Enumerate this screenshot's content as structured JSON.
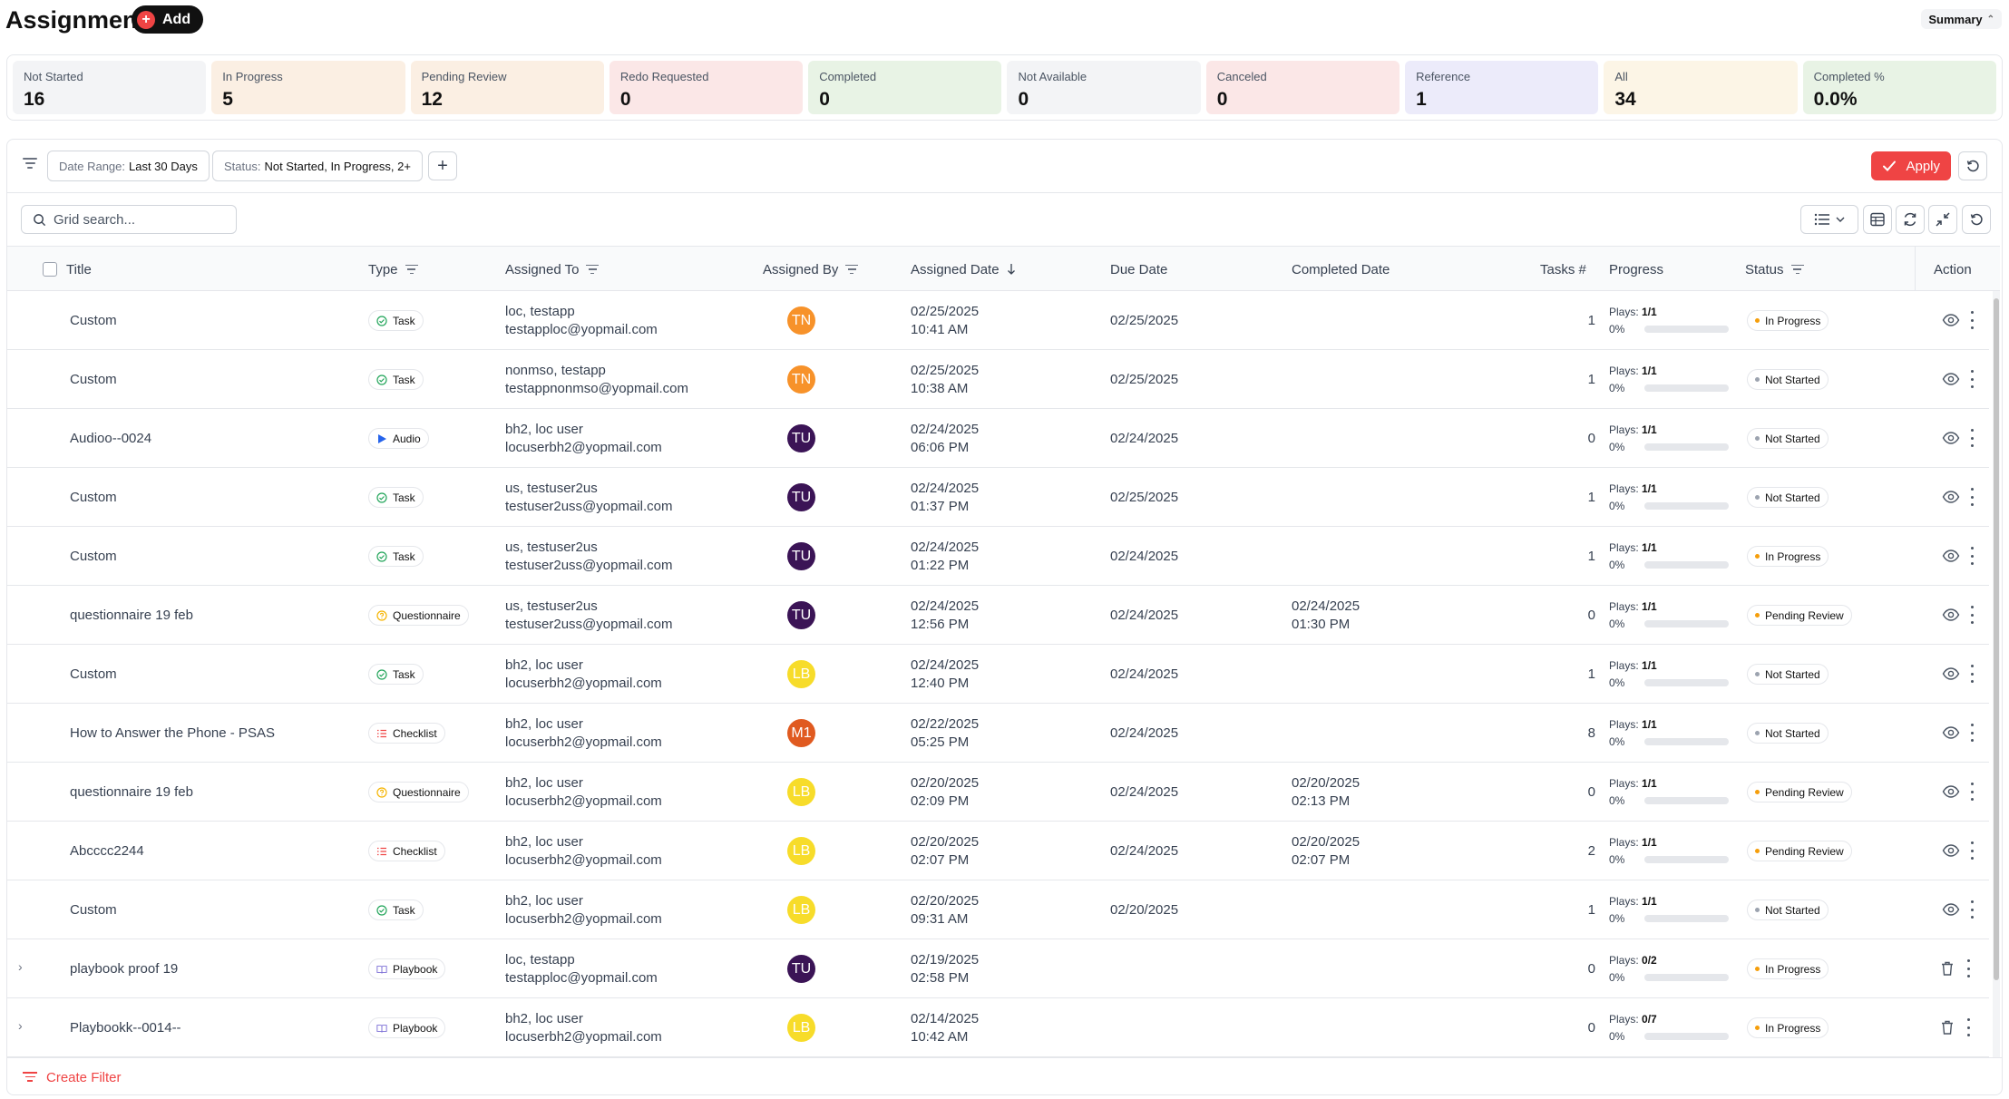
{
  "header": {
    "title": "Assignments",
    "add_label": "Add",
    "summary_label": "Summary"
  },
  "stats": [
    {
      "label": "Not Started",
      "value": "16",
      "color": "#f3f4f6"
    },
    {
      "label": "In Progress",
      "value": "5",
      "color": "#fbefe3"
    },
    {
      "label": "Pending Review",
      "value": "12",
      "color": "#fbefe3"
    },
    {
      "label": "Redo Requested",
      "value": "0",
      "color": "#fbe7e7"
    },
    {
      "label": "Completed",
      "value": "0",
      "color": "#e8f3e5"
    },
    {
      "label": "Not Available",
      "value": "0",
      "color": "#f3f4f6"
    },
    {
      "label": "Canceled",
      "value": "0",
      "color": "#fbe7e7"
    },
    {
      "label": "Reference",
      "value": "1",
      "color": "#ecebfa"
    },
    {
      "label": "All",
      "value": "34",
      "color": "#fcf5e6"
    },
    {
      "label": "Completed %",
      "value": "0.0%",
      "color": "#e8f3e5"
    }
  ],
  "filters": {
    "date_range_label": "Date Range:",
    "date_range_value": "Last 30 Days",
    "status_label": "Status:",
    "status_value": "Not Started, In Progress, 2+",
    "apply_label": "Apply"
  },
  "search": {
    "placeholder": "Grid search..."
  },
  "columns": {
    "title": "Title",
    "type": "Type",
    "assigned_to": "Assigned To",
    "assigned_by": "Assigned By",
    "assigned_date": "Assigned Date",
    "due_date": "Due Date",
    "completed_date": "Completed Date",
    "tasks": "Tasks #",
    "progress": "Progress",
    "status": "Status",
    "action": "Action"
  },
  "avatar_colors": {
    "TN": "#f7922a",
    "TU": "#3b1456",
    "LB": "#f7dc2a",
    "M1": "#e05a20"
  },
  "type_icons": {
    "Task": {
      "icon": "check-circle-icon",
      "color": "#22a55a"
    },
    "Audio": {
      "icon": "play-icon",
      "color": "#2563eb"
    },
    "Questionnaire": {
      "icon": "question-circle-icon",
      "color": "#f5b400"
    },
    "Checklist": {
      "icon": "list-icon",
      "color": "#ef4444"
    },
    "Playbook": {
      "icon": "book-icon",
      "color": "#7c6fd6"
    }
  },
  "status_colors": {
    "In Progress": "#f59e0b",
    "Not Started": "#9ca3af",
    "Pending Review": "#f59e0b"
  },
  "plays_label": "Plays:",
  "rows": [
    {
      "title": "Custom",
      "type": "Task",
      "to_name": "loc, testapp",
      "to_email": "testapploc@yopmail.com",
      "by": "TN",
      "assigned_date": "02/25/2025",
      "assigned_time": "10:41 AM",
      "due": "02/25/2025",
      "completed_date": "",
      "completed_time": "",
      "tasks": "1",
      "plays": "1/1",
      "pct": "0%",
      "status": "In Progress",
      "expandable": false
    },
    {
      "title": "Custom",
      "type": "Task",
      "to_name": "nonmso, testapp",
      "to_email": "testappnonmso@yopmail.com",
      "by": "TN",
      "assigned_date": "02/25/2025",
      "assigned_time": "10:38 AM",
      "due": "02/25/2025",
      "completed_date": "",
      "completed_time": "",
      "tasks": "1",
      "plays": "1/1",
      "pct": "0%",
      "status": "Not Started",
      "expandable": false
    },
    {
      "title": "Audioo--0024",
      "type": "Audio",
      "to_name": "bh2, loc user",
      "to_email": "locuserbh2@yopmail.com",
      "by": "TU",
      "assigned_date": "02/24/2025",
      "assigned_time": "06:06 PM",
      "due": "02/24/2025",
      "completed_date": "",
      "completed_time": "",
      "tasks": "0",
      "plays": "1/1",
      "pct": "0%",
      "status": "Not Started",
      "expandable": false
    },
    {
      "title": "Custom",
      "type": "Task",
      "to_name": "us, testuser2us",
      "to_email": "testuser2uss@yopmail.com",
      "by": "TU",
      "assigned_date": "02/24/2025",
      "assigned_time": "01:37 PM",
      "due": "02/25/2025",
      "completed_date": "",
      "completed_time": "",
      "tasks": "1",
      "plays": "1/1",
      "pct": "0%",
      "status": "Not Started",
      "expandable": false
    },
    {
      "title": "Custom",
      "type": "Task",
      "to_name": "us, testuser2us",
      "to_email": "testuser2uss@yopmail.com",
      "by": "TU",
      "assigned_date": "02/24/2025",
      "assigned_time": "01:22 PM",
      "due": "02/24/2025",
      "completed_date": "",
      "completed_time": "",
      "tasks": "1",
      "plays": "1/1",
      "pct": "0%",
      "status": "In Progress",
      "expandable": false
    },
    {
      "title": "questionnaire 19 feb",
      "type": "Questionnaire",
      "to_name": "us, testuser2us",
      "to_email": "testuser2uss@yopmail.com",
      "by": "TU",
      "assigned_date": "02/24/2025",
      "assigned_time": "12:56 PM",
      "due": "02/24/2025",
      "completed_date": "02/24/2025",
      "completed_time": "01:30 PM",
      "tasks": "0",
      "plays": "1/1",
      "pct": "0%",
      "status": "Pending Review",
      "expandable": false
    },
    {
      "title": "Custom",
      "type": "Task",
      "to_name": "bh2, loc user",
      "to_email": "locuserbh2@yopmail.com",
      "by": "LB",
      "assigned_date": "02/24/2025",
      "assigned_time": "12:40 PM",
      "due": "02/24/2025",
      "completed_date": "",
      "completed_time": "",
      "tasks": "1",
      "plays": "1/1",
      "pct": "0%",
      "status": "Not Started",
      "expandable": false
    },
    {
      "title": "How to Answer the Phone - PSAS",
      "type": "Checklist",
      "to_name": "bh2, loc user",
      "to_email": "locuserbh2@yopmail.com",
      "by": "M1",
      "assigned_date": "02/22/2025",
      "assigned_time": "05:25 PM",
      "due": "02/24/2025",
      "completed_date": "",
      "completed_time": "",
      "tasks": "8",
      "plays": "1/1",
      "pct": "0%",
      "status": "Not Started",
      "expandable": false
    },
    {
      "title": "questionnaire 19 feb",
      "type": "Questionnaire",
      "to_name": "bh2, loc user",
      "to_email": "locuserbh2@yopmail.com",
      "by": "LB",
      "assigned_date": "02/20/2025",
      "assigned_time": "02:09 PM",
      "due": "02/24/2025",
      "completed_date": "02/20/2025",
      "completed_time": "02:13 PM",
      "tasks": "0",
      "plays": "1/1",
      "pct": "0%",
      "status": "Pending Review",
      "expandable": false
    },
    {
      "title": "Abcccc2244",
      "type": "Checklist",
      "to_name": "bh2, loc user",
      "to_email": "locuserbh2@yopmail.com",
      "by": "LB",
      "assigned_date": "02/20/2025",
      "assigned_time": "02:07 PM",
      "due": "02/24/2025",
      "completed_date": "02/20/2025",
      "completed_time": "02:07 PM",
      "tasks": "2",
      "plays": "1/1",
      "pct": "0%",
      "status": "Pending Review",
      "expandable": false
    },
    {
      "title": "Custom",
      "type": "Task",
      "to_name": "bh2, loc user",
      "to_email": "locuserbh2@yopmail.com",
      "by": "LB",
      "assigned_date": "02/20/2025",
      "assigned_time": "09:31 AM",
      "due": "02/20/2025",
      "completed_date": "",
      "completed_time": "",
      "tasks": "1",
      "plays": "1/1",
      "pct": "0%",
      "status": "Not Started",
      "expandable": false
    },
    {
      "title": "playbook proof 19",
      "type": "Playbook",
      "to_name": "loc, testapp",
      "to_email": "testapploc@yopmail.com",
      "by": "TU",
      "assigned_date": "02/19/2025",
      "assigned_time": "02:58 PM",
      "due": "",
      "completed_date": "",
      "completed_time": "",
      "tasks": "0",
      "plays": "0/2",
      "pct": "0%",
      "status": "In Progress",
      "expandable": true
    },
    {
      "title": "Playbookk--0014--",
      "type": "Playbook",
      "to_name": "bh2, loc user",
      "to_email": "locuserbh2@yopmail.com",
      "by": "LB",
      "assigned_date": "02/14/2025",
      "assigned_time": "10:42 AM",
      "due": "",
      "completed_date": "",
      "completed_time": "",
      "tasks": "0",
      "plays": "0/7",
      "pct": "0%",
      "status": "In Progress",
      "expandable": true
    }
  ],
  "footer": {
    "create_filter_label": "Create Filter"
  }
}
